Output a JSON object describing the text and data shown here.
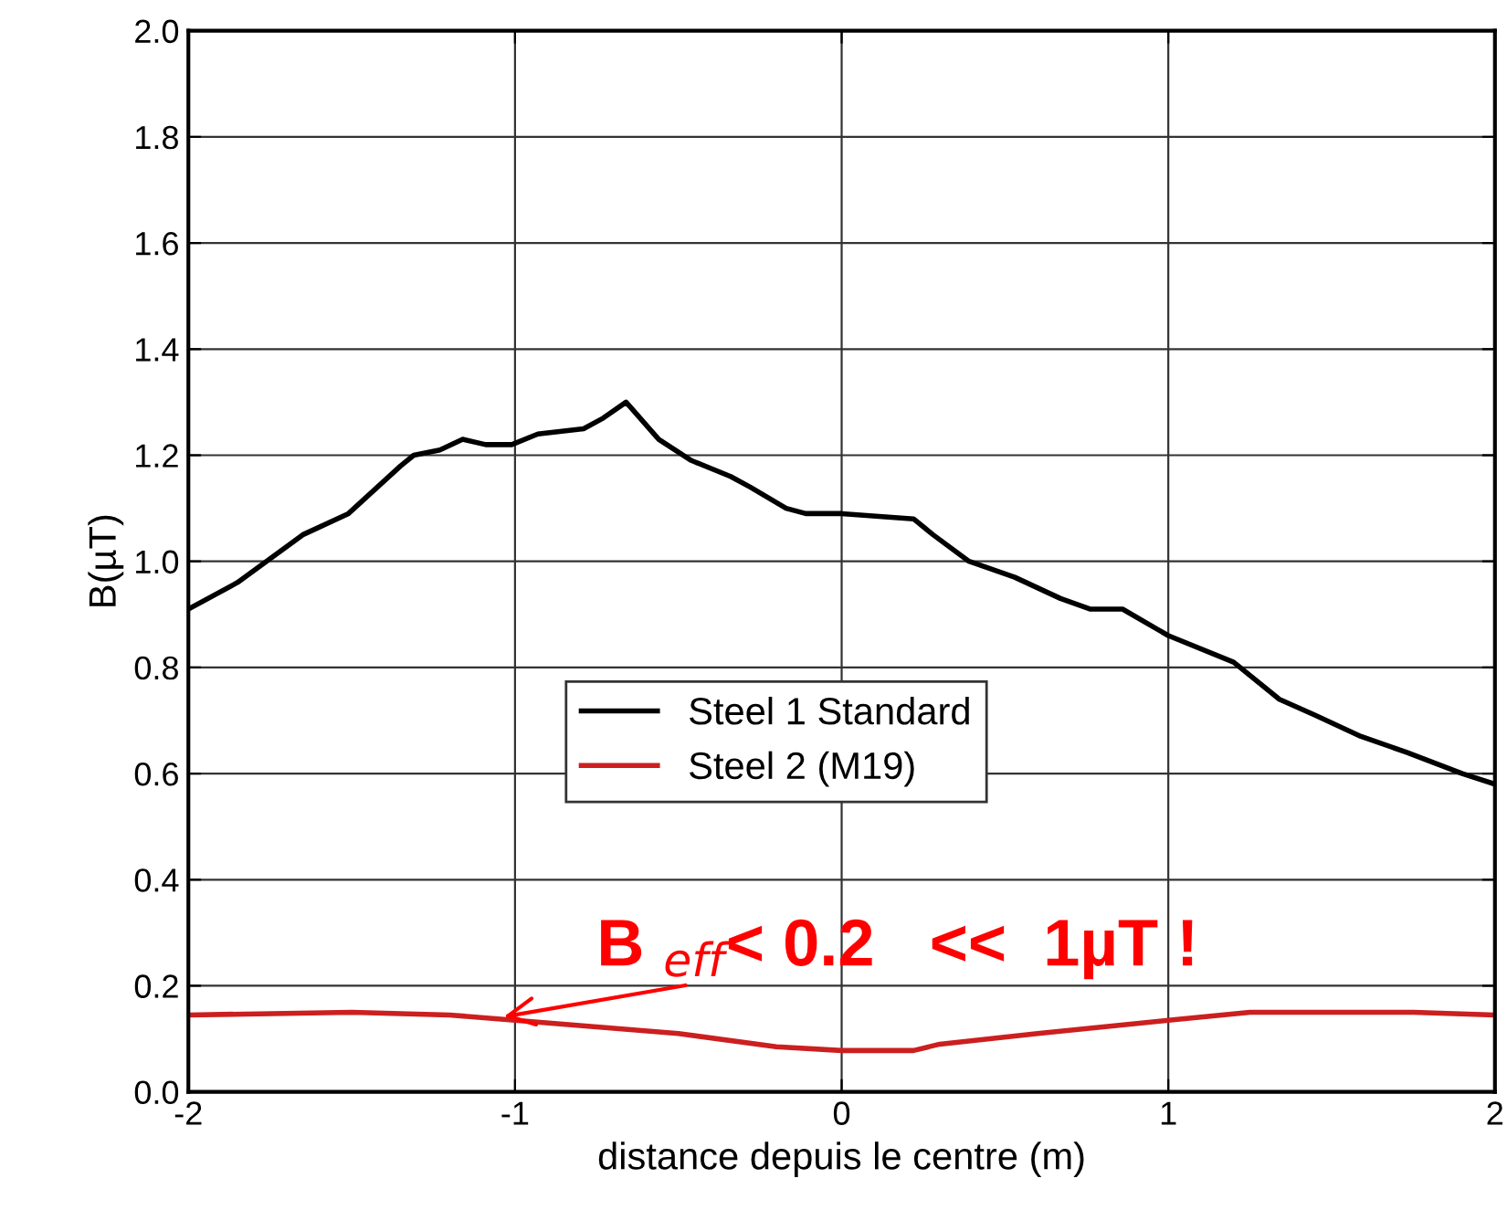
{
  "chart_data": {
    "type": "line",
    "xlabel": "distance depuis le centre (m)",
    "ylabel": "B(µT)",
    "xlim": [
      -2,
      2
    ],
    "xticks": [
      -2,
      -1,
      0,
      1,
      2
    ],
    "ylim": [
      0,
      2
    ],
    "yticks": [
      {
        "value": 0,
        "label": "0.0"
      },
      {
        "value": 0.2,
        "label": "0.2"
      },
      {
        "value": 0.4,
        "label": "0.4"
      },
      {
        "value": 0.6,
        "label": "0.6"
      },
      {
        "value": 0.8,
        "label": "0.8"
      },
      {
        "value": 1.0,
        "label": "1.0"
      },
      {
        "value": 1.2,
        "label": "1.2"
      },
      {
        "value": 1.4,
        "label": "1.4"
      },
      {
        "value": 1.6,
        "label": "1.6"
      },
      {
        "value": 1.8,
        "label": "1.8"
      },
      {
        "value": 2.0,
        "label": "2.0"
      }
    ],
    "grid": true,
    "legend": "center",
    "series": [
      {
        "name": "Steel 1 Standard",
        "color": "#000000",
        "x": [
          -2,
          -1.85,
          -1.65,
          -1.51,
          -1.35,
          -1.31,
          -1.23,
          -1.16,
          -1.09,
          -1.01,
          -0.93,
          -0.79,
          -0.73,
          -0.66,
          -0.56,
          -0.46,
          -0.34,
          -0.28,
          -0.17,
          -0.11,
          0,
          0.22,
          0.28,
          0.39,
          0.53,
          0.67,
          0.76,
          0.86,
          1.0,
          1.2,
          1.34,
          1.45,
          1.59,
          1.73,
          1.9,
          2
        ],
        "values": [
          0.91,
          0.96,
          1.05,
          1.09,
          1.18,
          1.2,
          1.21,
          1.23,
          1.22,
          1.22,
          1.24,
          1.25,
          1.27,
          1.3,
          1.23,
          1.19,
          1.16,
          1.14,
          1.1,
          1.09,
          1.09,
          1.08,
          1.05,
          1.0,
          0.97,
          0.93,
          0.91,
          0.91,
          0.86,
          0.81,
          0.74,
          0.71,
          0.67,
          0.64,
          0.6,
          0.58
        ]
      },
      {
        "name": "Steel 2 (M19)",
        "color": "#cc1f1f",
        "x": [
          -2,
          -1.5,
          -1.2,
          -1,
          -0.5,
          -0.2,
          0,
          0.22,
          0.3,
          0.6,
          1,
          1.25,
          1.75,
          2
        ],
        "values": [
          0.145,
          0.15,
          0.145,
          0.135,
          0.11,
          0.085,
          0.078,
          0.078,
          0.09,
          0.11,
          0.135,
          0.15,
          0.15,
          0.145
        ]
      }
    ],
    "annotations": [
      {
        "text": "B $_{eff}$< 0.2   <<  1µT !",
        "x": -1.05,
        "y": 0.14
      }
    ]
  }
}
